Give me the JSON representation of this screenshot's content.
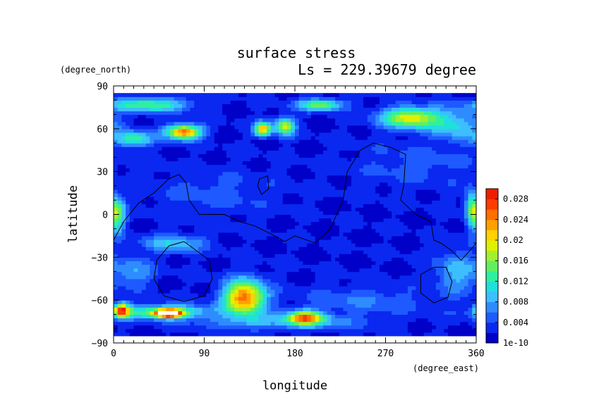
{
  "chart_data": {
    "type": "heatmap",
    "title": "surface stress",
    "subtitle": "Ls = 229.39679 degree",
    "xlabel": "longitude",
    "ylabel": "latitude",
    "x_unit": "(degree_east)",
    "y_unit": "(degree_north)",
    "xlim": [
      0,
      360
    ],
    "ylim": [
      -90,
      90
    ],
    "x_ticks": [
      "0",
      "90",
      "180",
      "270",
      "360"
    ],
    "y_ticks": [
      "90",
      "60",
      "30",
      "0",
      "−30",
      "−60",
      "−90"
    ],
    "x_tick_values": [
      0,
      90,
      180,
      270,
      360
    ],
    "y_tick_values": [
      90,
      60,
      30,
      0,
      -30,
      -60,
      -90
    ],
    "colorbar": {
      "labels": [
        "0.028",
        "0.024",
        "0.02",
        "0.016",
        "0.012",
        "0.008",
        "0.004",
        "1e-10"
      ],
      "values": [
        0.028,
        0.024,
        0.02,
        0.016,
        0.012,
        0.008,
        0.004,
        0
      ],
      "max": 0.03,
      "colors": [
        "#0000c8",
        "#0a28f0",
        "#1e5aff",
        "#2e8cff",
        "#3cbeff",
        "#20e0dc",
        "#30f0a0",
        "#60f060",
        "#a0f030",
        "#e0f000",
        "#ffd200",
        "#ffa000",
        "#ff6e00",
        "#ff3c00",
        "#f01e00"
      ]
    },
    "background_level": 0.002,
    "blobs": [
      {
        "lon": 55,
        "lat": -69,
        "rlon": 12,
        "rlat": 2.5,
        "amp": 0.032
      },
      {
        "lon": 50,
        "lat": -68,
        "rlon": 45,
        "rlat": 5,
        "amp": 0.014
      },
      {
        "lon": 8,
        "lat": -67,
        "rlon": 8,
        "rlat": 5,
        "amp": 0.022
      },
      {
        "lon": 130,
        "lat": -58,
        "rlon": 20,
        "rlat": 12,
        "amp": 0.024
      },
      {
        "lon": 190,
        "lat": -72,
        "rlon": 18,
        "rlat": 5,
        "amp": 0.02
      },
      {
        "lon": 170,
        "lat": -75,
        "rlon": 80,
        "rlat": 5,
        "amp": 0.006
      },
      {
        "lon": 70,
        "lat": 58,
        "rlon": 17,
        "rlat": 5,
        "amp": 0.024
      },
      {
        "lon": 20,
        "lat": 53,
        "rlon": 18,
        "rlat": 5,
        "amp": 0.012
      },
      {
        "lon": 35,
        "lat": 77,
        "rlon": 40,
        "rlat": 5,
        "amp": 0.012
      },
      {
        "lon": 148,
        "lat": 60,
        "rlon": 8,
        "rlat": 5,
        "amp": 0.02
      },
      {
        "lon": 170,
        "lat": 62,
        "rlon": 10,
        "rlat": 6,
        "amp": 0.016
      },
      {
        "lon": 205,
        "lat": 77,
        "rlon": 22,
        "rlat": 4,
        "amp": 0.014
      },
      {
        "lon": 295,
        "lat": 68,
        "rlon": 30,
        "rlat": 7,
        "amp": 0.018
      },
      {
        "lon": 340,
        "lat": 62,
        "rlon": 25,
        "rlat": 10,
        "amp": 0.008
      },
      {
        "lon": 3,
        "lat": 0,
        "rlon": 8,
        "rlat": 12,
        "amp": 0.014
      },
      {
        "lon": 355,
        "lat": 5,
        "rlon": 6,
        "rlat": 12,
        "amp": 0.01
      },
      {
        "lon": 60,
        "lat": -20,
        "rlon": 30,
        "rlat": 6,
        "amp": 0.008
      },
      {
        "lon": 20,
        "lat": -40,
        "rlon": 20,
        "rlat": 10,
        "amp": 0.006
      },
      {
        "lon": 340,
        "lat": -40,
        "rlon": 20,
        "rlat": 15,
        "amp": 0.007
      },
      {
        "lon": 250,
        "lat": -60,
        "rlon": 60,
        "rlat": 10,
        "amp": 0.004
      },
      {
        "lon": 300,
        "lat": 35,
        "rlon": 60,
        "rlat": 15,
        "amp": 0.003
      },
      {
        "lon": 100,
        "lat": 15,
        "rlon": 60,
        "rlat": 15,
        "amp": 0.003
      }
    ],
    "contours": [
      {
        "name": "dichotomy",
        "closed": false,
        "points": [
          [
            0,
            -18
          ],
          [
            10,
            -5
          ],
          [
            25,
            8
          ],
          [
            40,
            15
          ],
          [
            55,
            25
          ],
          [
            65,
            28
          ],
          [
            72,
            22
          ],
          [
            75,
            10
          ],
          [
            85,
            0
          ],
          [
            110,
            0
          ],
          [
            125,
            -5
          ],
          [
            140,
            -8
          ],
          [
            160,
            -15
          ],
          [
            170,
            -19
          ],
          [
            180,
            -15
          ],
          [
            200,
            -20
          ],
          [
            215,
            -10
          ],
          [
            228,
            10
          ],
          [
            232,
            30
          ],
          [
            245,
            45
          ],
          [
            258,
            50
          ],
          [
            275,
            47
          ],
          [
            290,
            42
          ],
          [
            288,
            20
          ],
          [
            285,
            10
          ],
          [
            300,
            0
          ],
          [
            315,
            -5
          ],
          [
            318,
            -18
          ],
          [
            325,
            -20
          ],
          [
            335,
            -25
          ],
          [
            345,
            -32
          ],
          [
            358,
            -22
          ],
          [
            362,
            -20
          ]
        ]
      },
      {
        "name": "hellas",
        "closed": true,
        "points": [
          [
            55,
            -22
          ],
          [
            70,
            -19
          ],
          [
            95,
            -32
          ],
          [
            98,
            -45
          ],
          [
            90,
            -57
          ],
          [
            70,
            -61
          ],
          [
            50,
            -57
          ],
          [
            40,
            -45
          ],
          [
            43,
            -32
          ]
        ]
      },
      {
        "name": "argyre",
        "closed": true,
        "points": [
          [
            318,
            -37
          ],
          [
            330,
            -37
          ],
          [
            336,
            -47
          ],
          [
            332,
            -58
          ],
          [
            318,
            -62
          ],
          [
            305,
            -55
          ],
          [
            305,
            -42
          ]
        ]
      },
      {
        "name": "elysium",
        "closed": true,
        "points": [
          [
            145,
            25
          ],
          [
            153,
            27
          ],
          [
            154,
            18
          ],
          [
            147,
            14
          ],
          [
            143,
            20
          ]
        ]
      }
    ]
  }
}
